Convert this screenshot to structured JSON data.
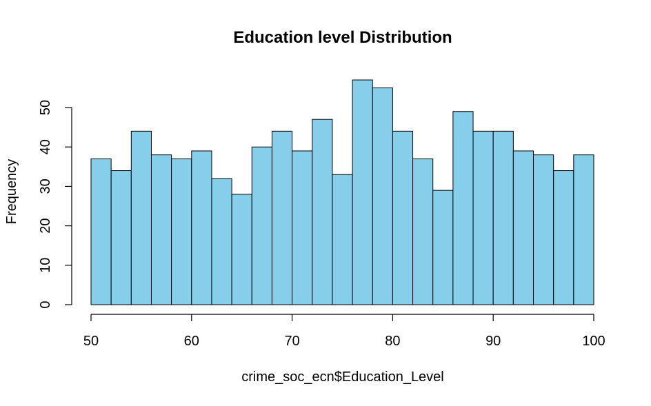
{
  "chart_data": {
    "type": "bar",
    "title": "Education level Distribution",
    "xlabel": "crime_soc_ecn$Education_Level",
    "ylabel": "Frequency",
    "bin_edges": [
      50,
      52,
      54,
      56,
      58,
      60,
      62,
      64,
      66,
      68,
      70,
      72,
      74,
      76,
      78,
      80,
      82,
      84,
      86,
      88,
      90,
      92,
      94,
      96,
      98,
      100
    ],
    "values": [
      37,
      34,
      44,
      38,
      37,
      39,
      32,
      28,
      40,
      44,
      39,
      47,
      33,
      57,
      55,
      44,
      37,
      29,
      49,
      44,
      44,
      39,
      38,
      34,
      38
    ],
    "xlim": [
      50,
      100
    ],
    "ylim": [
      0,
      57
    ],
    "x_ticks": [
      "50",
      "60",
      "70",
      "80",
      "90",
      "100"
    ],
    "y_ticks": [
      "0",
      "10",
      "20",
      "30",
      "40",
      "50"
    ],
    "bar_color": "#87CEEB",
    "border_color": "#000000",
    "grid": false,
    "legend": "none"
  }
}
